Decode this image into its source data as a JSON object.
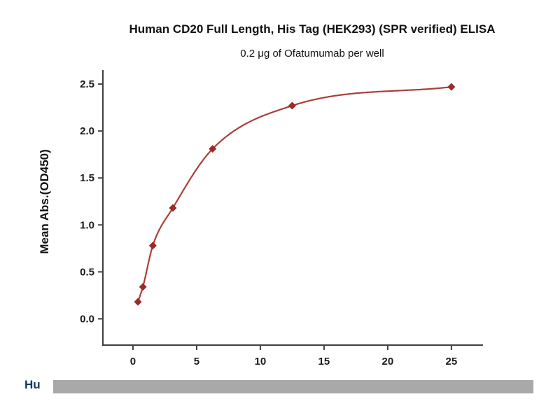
{
  "chart_data": {
    "type": "scatter",
    "title": "Human CD20 Full Length, His Tag (HEK293) (SPR verified) ELISA",
    "subtitle": "0.2 μg of Ofatumumab per well",
    "xlabel": "",
    "ylabel": "Mean Abs.(OD450)",
    "x": [
      0.39,
      0.78,
      1.56,
      3.13,
      6.25,
      12.5,
      25
    ],
    "y": [
      0.18,
      0.34,
      0.78,
      1.18,
      1.81,
      2.27,
      2.47
    ],
    "xticks": [
      0,
      5,
      10,
      15,
      20,
      25
    ],
    "yticks": [
      0,
      0.5,
      1,
      1.5,
      2,
      2.5
    ],
    "xlim": [
      -2.36,
      27.48
    ],
    "ylim": [
      -0.28,
      2.65
    ],
    "grid": false,
    "legend": "none",
    "marker": "diamond",
    "fit_curve": true,
    "colors": {
      "line": "#a84039",
      "marker": "#992b28",
      "axis": "#3f3f3f",
      "text": "#111111"
    }
  },
  "footer": {
    "visible_text": "Hu",
    "bar_color": "#a9a9a9",
    "text_color": "#17375e"
  }
}
